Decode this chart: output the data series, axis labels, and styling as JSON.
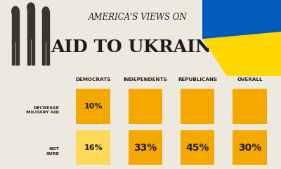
{
  "title_line1": "AMERICA'S VIEWS ON",
  "title_line2": "AID TO UKRAINE",
  "categories": [
    "DEMOCRATS",
    "INDEPENDENTS",
    "REPUBLICANS",
    "OVERALL"
  ],
  "row_labels_top": "DECREASE\nMILITARY AID",
  "row_labels_bot": "NOT\nSURE",
  "dem_top_pct": "10%",
  "dem_bot_pct": "16%",
  "other_pcts": [
    "33%",
    "45%",
    "30%"
  ],
  "bar_color_gold": "#F5A800",
  "bar_color_yellow": "#FFD95A",
  "bar_color_orange": "#F5A800",
  "bg_color": "#EDE9DF",
  "text_color": "#1C1C1C",
  "title1_fontsize": 8.5,
  "title2_fontsize": 18,
  "flag_blue": "#005BBB",
  "flag_yellow": "#FFD700"
}
